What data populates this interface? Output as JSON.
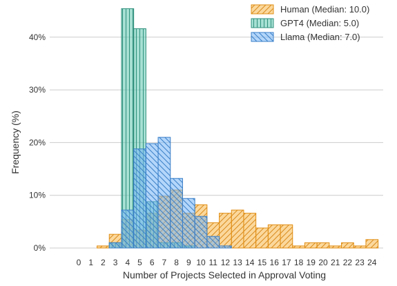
{
  "chart_data": {
    "type": "bar",
    "title": "",
    "xlabel": "Number of Projects Selected in Approval Voting",
    "ylabel": "Frequency (%)",
    "ylim": [
      0,
      46
    ],
    "yticks": [
      0,
      10,
      20,
      30,
      40
    ],
    "ytick_labels": [
      "0%",
      "10%",
      "20%",
      "30%",
      "40%"
    ],
    "categories": [
      0,
      1,
      2,
      3,
      4,
      5,
      6,
      7,
      8,
      9,
      10,
      11,
      12,
      13,
      14,
      15,
      16,
      17,
      18,
      19,
      20,
      21,
      22,
      23,
      24
    ],
    "grid": "horizontal",
    "legend_position": "top-right",
    "series": [
      {
        "name": "Human (Median: 10.0)",
        "color": "#f7b84a",
        "pattern": "diagonal-forward",
        "values": [
          0,
          0,
          0.4,
          2.6,
          5.4,
          3.4,
          6.6,
          9.8,
          11.0,
          6.6,
          8.2,
          4.8,
          6.6,
          7.2,
          6.6,
          3.8,
          4.4,
          4.4,
          0.4,
          1.0,
          1.0,
          0.4,
          1.0,
          0.4,
          1.6
        ]
      },
      {
        "name": "GPT4 (Median: 5.0)",
        "color": "#5fc7b0",
        "pattern": "vertical",
        "values": [
          0,
          0,
          0,
          1.0,
          45.4,
          41.6,
          8.8,
          1.0,
          1.0,
          0.4,
          0,
          0,
          0,
          0,
          0,
          0,
          0,
          0,
          0,
          0,
          0,
          0,
          0,
          0,
          0
        ]
      },
      {
        "name": "Llama (Median: 7.0)",
        "color": "#75b5f5",
        "pattern": "diagonal-back",
        "values": [
          0,
          0,
          0,
          1.0,
          7.2,
          18.8,
          19.8,
          21.0,
          13.2,
          9.4,
          6.0,
          2.2,
          0.4,
          0,
          0,
          0,
          0,
          0,
          0,
          0,
          0,
          0,
          0,
          0,
          0
        ]
      }
    ]
  }
}
